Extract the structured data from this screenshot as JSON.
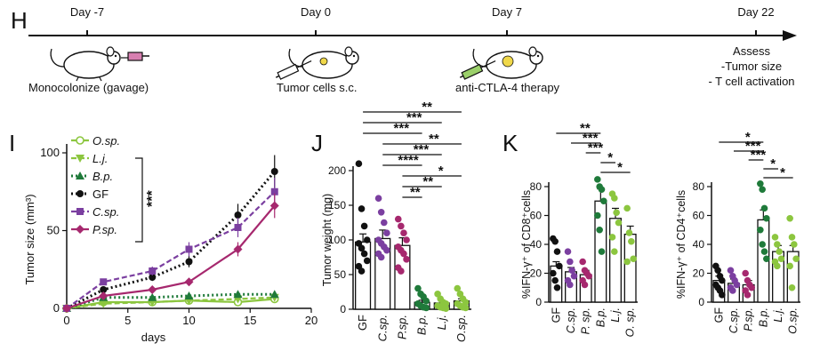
{
  "panel_h": {
    "letter": "H",
    "timepoints": [
      {
        "label": "Day -7",
        "event": "Monocolonize (gavage)"
      },
      {
        "label": "Day 0",
        "event": "Tumor cells s.c."
      },
      {
        "label": "Day 7",
        "event": "anti-CTLA-4 therapy"
      },
      {
        "label": "Day 22",
        "event": ""
      }
    ],
    "assess": [
      "Assess",
      "-Tumor size",
      "- T cell activation"
    ]
  },
  "chart_data": [
    {
      "panel": "I",
      "type": "line",
      "xlabel": "days",
      "ylabel": "Tumor size (mm³)",
      "xlim": [
        0,
        20
      ],
      "ylim": [
        0,
        100
      ],
      "xticks": [
        0,
        5,
        10,
        15,
        20
      ],
      "yticks": [
        0,
        50,
        100
      ],
      "x": [
        0,
        3,
        7,
        10,
        14,
        17
      ],
      "series": [
        {
          "name": "O.sp.",
          "color": "#8cc63f",
          "marker": "circle-open",
          "dash": "solid",
          "values": [
            0,
            4,
            4,
            5,
            4,
            6
          ]
        },
        {
          "name": "L.j.",
          "color": "#8cc63f",
          "marker": "triangle-down",
          "dash": "dashed",
          "values": [
            0,
            3,
            4,
            5,
            6,
            7
          ]
        },
        {
          "name": "B.p.",
          "color": "#1f7a3a",
          "marker": "triangle-up",
          "dash": "dotted",
          "values": [
            0,
            7,
            7,
            8,
            9,
            9
          ]
        },
        {
          "name": "GF",
          "color": "#111111",
          "marker": "circle",
          "dash": "dotted",
          "values": [
            0,
            12,
            20,
            30,
            60,
            88
          ]
        },
        {
          "name": "C.sp.",
          "color": "#7b3fa0",
          "marker": "square",
          "dash": "dashed",
          "values": [
            0,
            17,
            24,
            38,
            52,
            75
          ]
        },
        {
          "name": "P.sp.",
          "color": "#a6286e",
          "marker": "diamond",
          "dash": "solid",
          "values": [
            0,
            8,
            12,
            17,
            38,
            66
          ]
        }
      ],
      "significance": "***"
    },
    {
      "panel": "J",
      "type": "bar",
      "ylabel": "Tumor weight (mg)",
      "ylim": [
        0,
        200
      ],
      "yticks": [
        0,
        50,
        100,
        150,
        200
      ],
      "categories": [
        "GF",
        "C.sp.",
        "P.sp.",
        "B.p.",
        "L.j.",
        "O.sp."
      ],
      "values": [
        97,
        102,
        92,
        10,
        9,
        12
      ],
      "colors": [
        "#111111",
        "#7b3fa0",
        "#a6286e",
        "#1f7a3a",
        "#8cc63f",
        "#8cc63f"
      ],
      "points": [
        [
          210,
          145,
          120,
          100,
          95,
          88,
          80,
          70,
          62,
          55
        ],
        [
          160,
          140,
          125,
          110,
          100,
          95,
          90,
          85,
          80,
          75
        ],
        [
          130,
          120,
          110,
          100,
          90,
          85,
          80,
          72,
          60,
          55
        ],
        [
          30,
          22,
          18,
          12,
          8,
          5,
          3,
          2
        ],
        [
          22,
          15,
          10,
          8,
          5,
          3,
          2,
          1
        ],
        [
          30,
          22,
          15,
          10,
          8,
          5,
          3,
          2
        ]
      ],
      "brackets": [
        {
          "from": 0,
          "to": 5,
          "label": "**"
        },
        {
          "from": 0,
          "to": 4,
          "label": "***"
        },
        {
          "from": 0,
          "to": 3,
          "label": "***"
        },
        {
          "from": 1,
          "to": 5,
          "label": "**"
        },
        {
          "from": 1,
          "to": 4,
          "label": "***"
        },
        {
          "from": 1,
          "to": 3,
          "label": "****"
        },
        {
          "from": 2,
          "to": 5,
          "label": "*"
        },
        {
          "from": 2,
          "to": 4,
          "label": "**"
        },
        {
          "from": 2,
          "to": 3,
          "label": "**"
        }
      ]
    },
    {
      "panel": "K",
      "type": "bar",
      "ylabel": "%IFN-γ⁺ of  CD8⁺cells",
      "ylim": [
        0,
        80
      ],
      "yticks": [
        0,
        20,
        40,
        60,
        80
      ],
      "categories": [
        "GF",
        "C.sp.",
        "P. sp.",
        "B.p.",
        "L.j.",
        "O. sp."
      ],
      "values": [
        25,
        21,
        19,
        70,
        58,
        47
      ],
      "colors": [
        "#111111",
        "#7b3fa0",
        "#a6286e",
        "#1f7a3a",
        "#8cc63f",
        "#8cc63f"
      ],
      "points": [
        [
          44,
          42,
          35,
          25,
          20,
          15,
          10
        ],
        [
          35,
          28,
          22,
          18,
          15,
          12
        ],
        [
          28,
          22,
          20,
          18,
          15,
          12
        ],
        [
          85,
          80,
          78,
          70,
          60,
          50,
          35
        ],
        [
          75,
          72,
          62,
          55,
          45,
          35
        ],
        [
          65,
          48,
          42,
          30,
          28
        ]
      ],
      "brackets": [
        {
          "from": 0,
          "to": 3,
          "label": "**"
        },
        {
          "from": 1,
          "to": 3,
          "label": "***"
        },
        {
          "from": 2,
          "to": 3,
          "label": "***"
        },
        {
          "from": 3,
          "to": 4,
          "label": "*"
        },
        {
          "from": 3,
          "to": 5,
          "label": "*"
        }
      ]
    },
    {
      "panel": "K2",
      "type": "bar",
      "ylabel": "%IFN-γ⁺ of  CD4⁺cells",
      "ylim": [
        0,
        80
      ],
      "yticks": [
        0,
        20,
        40,
        60,
        80
      ],
      "categories": [
        "GF",
        "C.sp.",
        "P.sp.",
        "B.p.",
        "L.j.",
        "O.sp."
      ],
      "values": [
        15,
        13,
        12,
        57,
        35,
        35
      ],
      "colors": [
        "#111111",
        "#7b3fa0",
        "#a6286e",
        "#1f7a3a",
        "#8cc63f",
        "#8cc63f"
      ],
      "points": [
        [
          25,
          22,
          18,
          15,
          12,
          10,
          8,
          5
        ],
        [
          22,
          18,
          15,
          12,
          10,
          8
        ],
        [
          20,
          15,
          12,
          10,
          8,
          5
        ],
        [
          82,
          78,
          65,
          58,
          50,
          40,
          35,
          30
        ],
        [
          45,
          40,
          35,
          30,
          28,
          25
        ],
        [
          58,
          45,
          40,
          30,
          25,
          10
        ]
      ],
      "brackets": [
        {
          "from": 0,
          "to": 3,
          "label": "*"
        },
        {
          "from": 1,
          "to": 3,
          "label": "***"
        },
        {
          "from": 2,
          "to": 3,
          "label": "***"
        },
        {
          "from": 3,
          "to": 4,
          "label": "*"
        },
        {
          "from": 3,
          "to": 5,
          "label": "*"
        }
      ]
    }
  ],
  "panel_letters": {
    "i": "I",
    "j": "J",
    "k": "K"
  }
}
